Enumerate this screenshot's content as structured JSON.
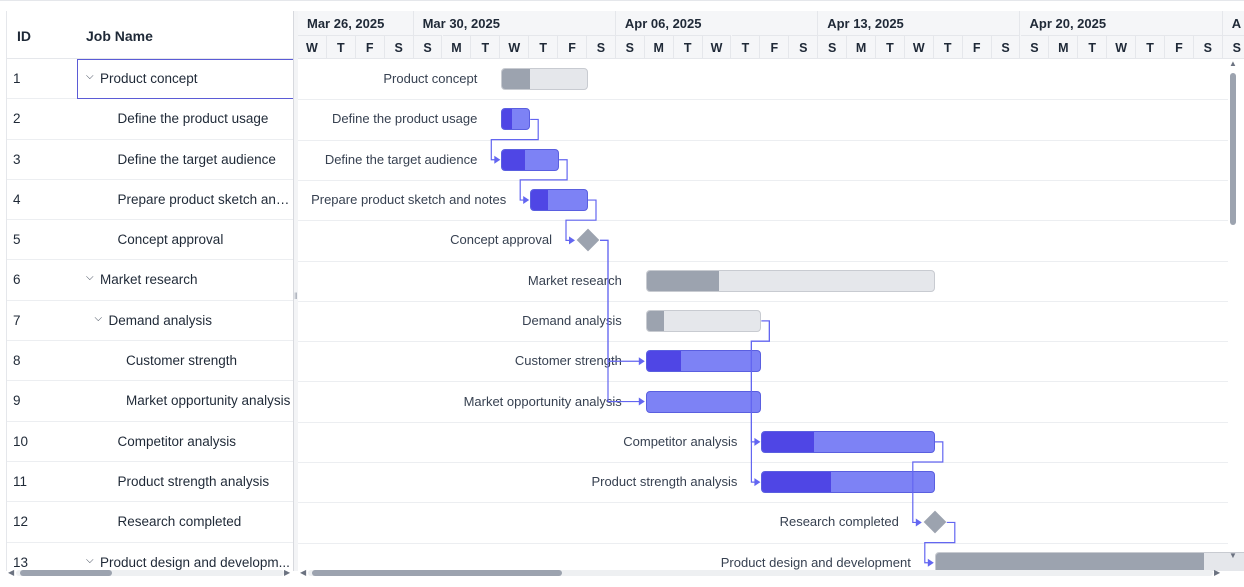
{
  "grid": {
    "headers": {
      "id": "ID",
      "name": "Job Name"
    },
    "rows": [
      {
        "id": "1",
        "name": "Product concept",
        "level": 0,
        "expandable": true
      },
      {
        "id": "2",
        "name": "Define the product usage",
        "level": 1,
        "expandable": false
      },
      {
        "id": "3",
        "name": "Define the target audience",
        "level": 1,
        "expandable": false
      },
      {
        "id": "4",
        "name": "Prepare product sketch and ...",
        "level": 1,
        "expandable": false
      },
      {
        "id": "5",
        "name": "Concept approval",
        "level": 1,
        "expandable": false
      },
      {
        "id": "6",
        "name": "Market research",
        "level": 0,
        "expandable": true
      },
      {
        "id": "7",
        "name": "Demand analysis",
        "level": 1,
        "expandable": true
      },
      {
        "id": "8",
        "name": "Customer strength",
        "level": 2,
        "expandable": false
      },
      {
        "id": "9",
        "name": "Market opportunity analysis",
        "level": 2,
        "expandable": false
      },
      {
        "id": "10",
        "name": "Competitor analysis",
        "level": 1,
        "expandable": false
      },
      {
        "id": "11",
        "name": "Product strength analysis",
        "level": 1,
        "expandable": false
      },
      {
        "id": "12",
        "name": "Research completed",
        "level": 1,
        "expandable": false
      },
      {
        "id": "13",
        "name": "Product design and developm...",
        "level": 0,
        "expandable": true
      }
    ]
  },
  "timeline": {
    "weeks": [
      "Mar 26, 2025",
      "Mar 30, 2025",
      "Apr 06, 2025",
      "Apr 13, 2025",
      "Apr 20, 2025",
      "A"
    ],
    "days": [
      "W",
      "T",
      "F",
      "S",
      "S",
      "M",
      "T",
      "W",
      "T",
      "F",
      "S",
      "S",
      "M",
      "T",
      "W",
      "T",
      "F",
      "S",
      "S",
      "M",
      "T",
      "W",
      "T",
      "F",
      "S",
      "S",
      "M",
      "T",
      "W",
      "T",
      "F",
      "S",
      "S"
    ]
  },
  "tasks": [
    {
      "row": 0,
      "label": "Product concept",
      "type": "parent",
      "start_day": 7,
      "duration": 3,
      "progress": 0.33
    },
    {
      "row": 1,
      "label": "Define the product usage",
      "type": "task",
      "start_day": 7,
      "duration": 1,
      "progress": 0.35
    },
    {
      "row": 2,
      "label": "Define the target audience",
      "type": "task",
      "start_day": 7,
      "duration": 2,
      "progress": 0.4
    },
    {
      "row": 3,
      "label": "Prepare product sketch and notes",
      "type": "task",
      "start_day": 8,
      "duration": 2,
      "progress": 0.3
    },
    {
      "row": 4,
      "label": "Concept approval",
      "type": "milestone",
      "start_day": 10,
      "duration": 0,
      "progress": 0
    },
    {
      "row": 5,
      "label": "Market research",
      "type": "parent",
      "start_day": 12,
      "duration": 10,
      "progress": 0.25
    },
    {
      "row": 6,
      "label": "Demand analysis",
      "type": "parent",
      "start_day": 12,
      "duration": 4,
      "progress": 0.15
    },
    {
      "row": 7,
      "label": "Customer strength",
      "type": "task",
      "start_day": 12,
      "duration": 4,
      "progress": 0.3
    },
    {
      "row": 8,
      "label": "Market opportunity analysis",
      "type": "task",
      "start_day": 12,
      "duration": 4,
      "progress": 0
    },
    {
      "row": 9,
      "label": "Competitor analysis",
      "type": "task",
      "start_day": 16,
      "duration": 6,
      "progress": 0.3
    },
    {
      "row": 10,
      "label": "Product strength analysis",
      "type": "task",
      "start_day": 16,
      "duration": 6,
      "progress": 0.4
    },
    {
      "row": 11,
      "label": "Research completed",
      "type": "milestone",
      "start_day": 22,
      "duration": 0,
      "progress": 0
    },
    {
      "row": 12,
      "label": "Product design and development",
      "type": "parent",
      "start_day": 22,
      "duration": 11,
      "progress": 0.85
    }
  ],
  "dependencies": [
    [
      1,
      2
    ],
    [
      2,
      3
    ],
    [
      3,
      4
    ],
    [
      4,
      7
    ],
    [
      4,
      8
    ],
    [
      6,
      9
    ],
    [
      6,
      10
    ],
    [
      9,
      11
    ],
    [
      11,
      12
    ]
  ],
  "colors": {
    "accent": "#5b5bd6",
    "task": "#7d82f5",
    "task_progress": "#4f46e5",
    "parent": "#e5e7eb",
    "parent_progress": "#9ca3af",
    "link": "#6366f1"
  }
}
